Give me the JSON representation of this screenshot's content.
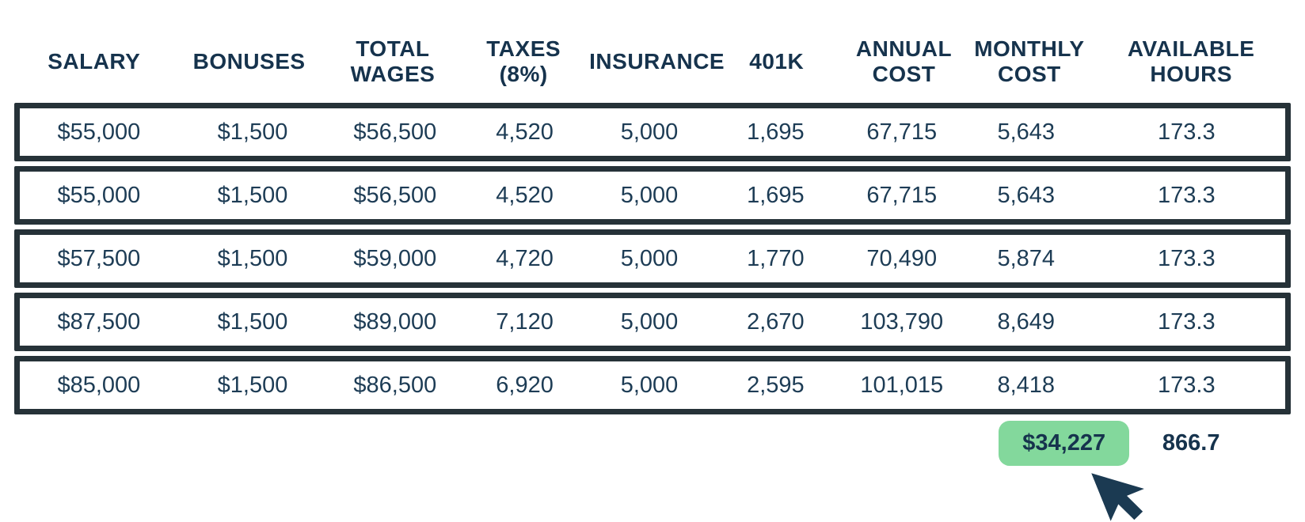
{
  "table": {
    "columns": [
      {
        "key": "salary",
        "label": "SALARY"
      },
      {
        "key": "bonuses",
        "label": "BONUSES"
      },
      {
        "key": "total-wages",
        "label": "TOTAL WAGES"
      },
      {
        "key": "taxes",
        "label": "TAXES (8%)"
      },
      {
        "key": "insurance",
        "label": "INSURANCE"
      },
      {
        "key": "401k",
        "label": "401K"
      },
      {
        "key": "annual-cost",
        "label": "ANNUAL COST"
      },
      {
        "key": "monthly-cost",
        "label": "MONTHLY COST"
      },
      {
        "key": "available-hours",
        "label": "AVAILABLE HOURS"
      }
    ],
    "rows": [
      [
        "$55,000",
        "$1,500",
        "$56,500",
        "4,520",
        "5,000",
        "1,695",
        "67,715",
        "5,643",
        "173.3"
      ],
      [
        "$55,000",
        "$1,500",
        "$56,500",
        "4,520",
        "5,000",
        "1,695",
        "67,715",
        "5,643",
        "173.3"
      ],
      [
        "$57,500",
        "$1,500",
        "$59,000",
        "4,720",
        "5,000",
        "1,770",
        "70,490",
        "5,874",
        "173.3"
      ],
      [
        "$87,500",
        "$1,500",
        "$89,000",
        "7,120",
        "5,000",
        "2,670",
        "103,790",
        "8,649",
        "173.3"
      ],
      [
        "$85,000",
        "$1,500",
        "$86,500",
        "6,920",
        "5,000",
        "2,595",
        "101,015",
        "8,418",
        "173.3"
      ]
    ],
    "totals": {
      "monthly_cost_total": "$34,227",
      "available_hours_total": "866.7"
    }
  },
  "colors": {
    "text": "#1d3c55",
    "header-text": "#16334d",
    "row-border": "#263238",
    "highlight": "#83d89c",
    "bg": "#ffffff",
    "cursor": "#1b3a52"
  }
}
